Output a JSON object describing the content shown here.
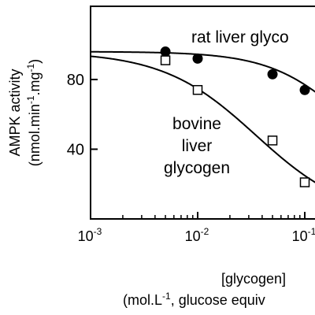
{
  "chart_data": {
    "type": "scatter",
    "ylabel_line1": "AMPK activity",
    "ylabel_line2_parts": [
      "(nmol.min",
      "-1",
      ".mg",
      "-1",
      ")"
    ],
    "xlabel_line1": "[glycogen]",
    "xlabel_line2_parts": [
      "(mol.L",
      "-1",
      ", glucose equiv"
    ],
    "xscale": "log",
    "xlim": [
      0.001,
      0.14
    ],
    "ylim": [
      0,
      122
    ],
    "x_ticks": [
      {
        "value": 0.001,
        "base": "10",
        "exp": "-3"
      },
      {
        "value": 0.01,
        "base": "10",
        "exp": "-2"
      },
      {
        "value": 0.1,
        "base": "10",
        "exp": "-1"
      }
    ],
    "y_ticks": [
      {
        "value": 40,
        "label": "40"
      },
      {
        "value": 80,
        "label": "80"
      }
    ],
    "series": [
      {
        "name": "rat liver glycogen",
        "label_text": "rat liver glyco",
        "marker": "filled-circle",
        "x": [
          0.005,
          0.01,
          0.05,
          0.1
        ],
        "y": [
          96,
          92,
          83,
          74
        ],
        "curve": {
          "top": 96,
          "bottom": 20,
          "ec50": 0.25,
          "hill": 1.2
        }
      },
      {
        "name": "bovine liver glycogen",
        "label_lines": [
          "bovine",
          "liver",
          "glycogen"
        ],
        "marker": "open-square",
        "x": [
          0.005,
          0.01,
          0.05,
          0.1
        ],
        "y": [
          91,
          74,
          45,
          21
        ],
        "curve": {
          "top": 96,
          "bottom": 0,
          "ec50": 0.035,
          "hill": 1.0
        }
      }
    ]
  }
}
